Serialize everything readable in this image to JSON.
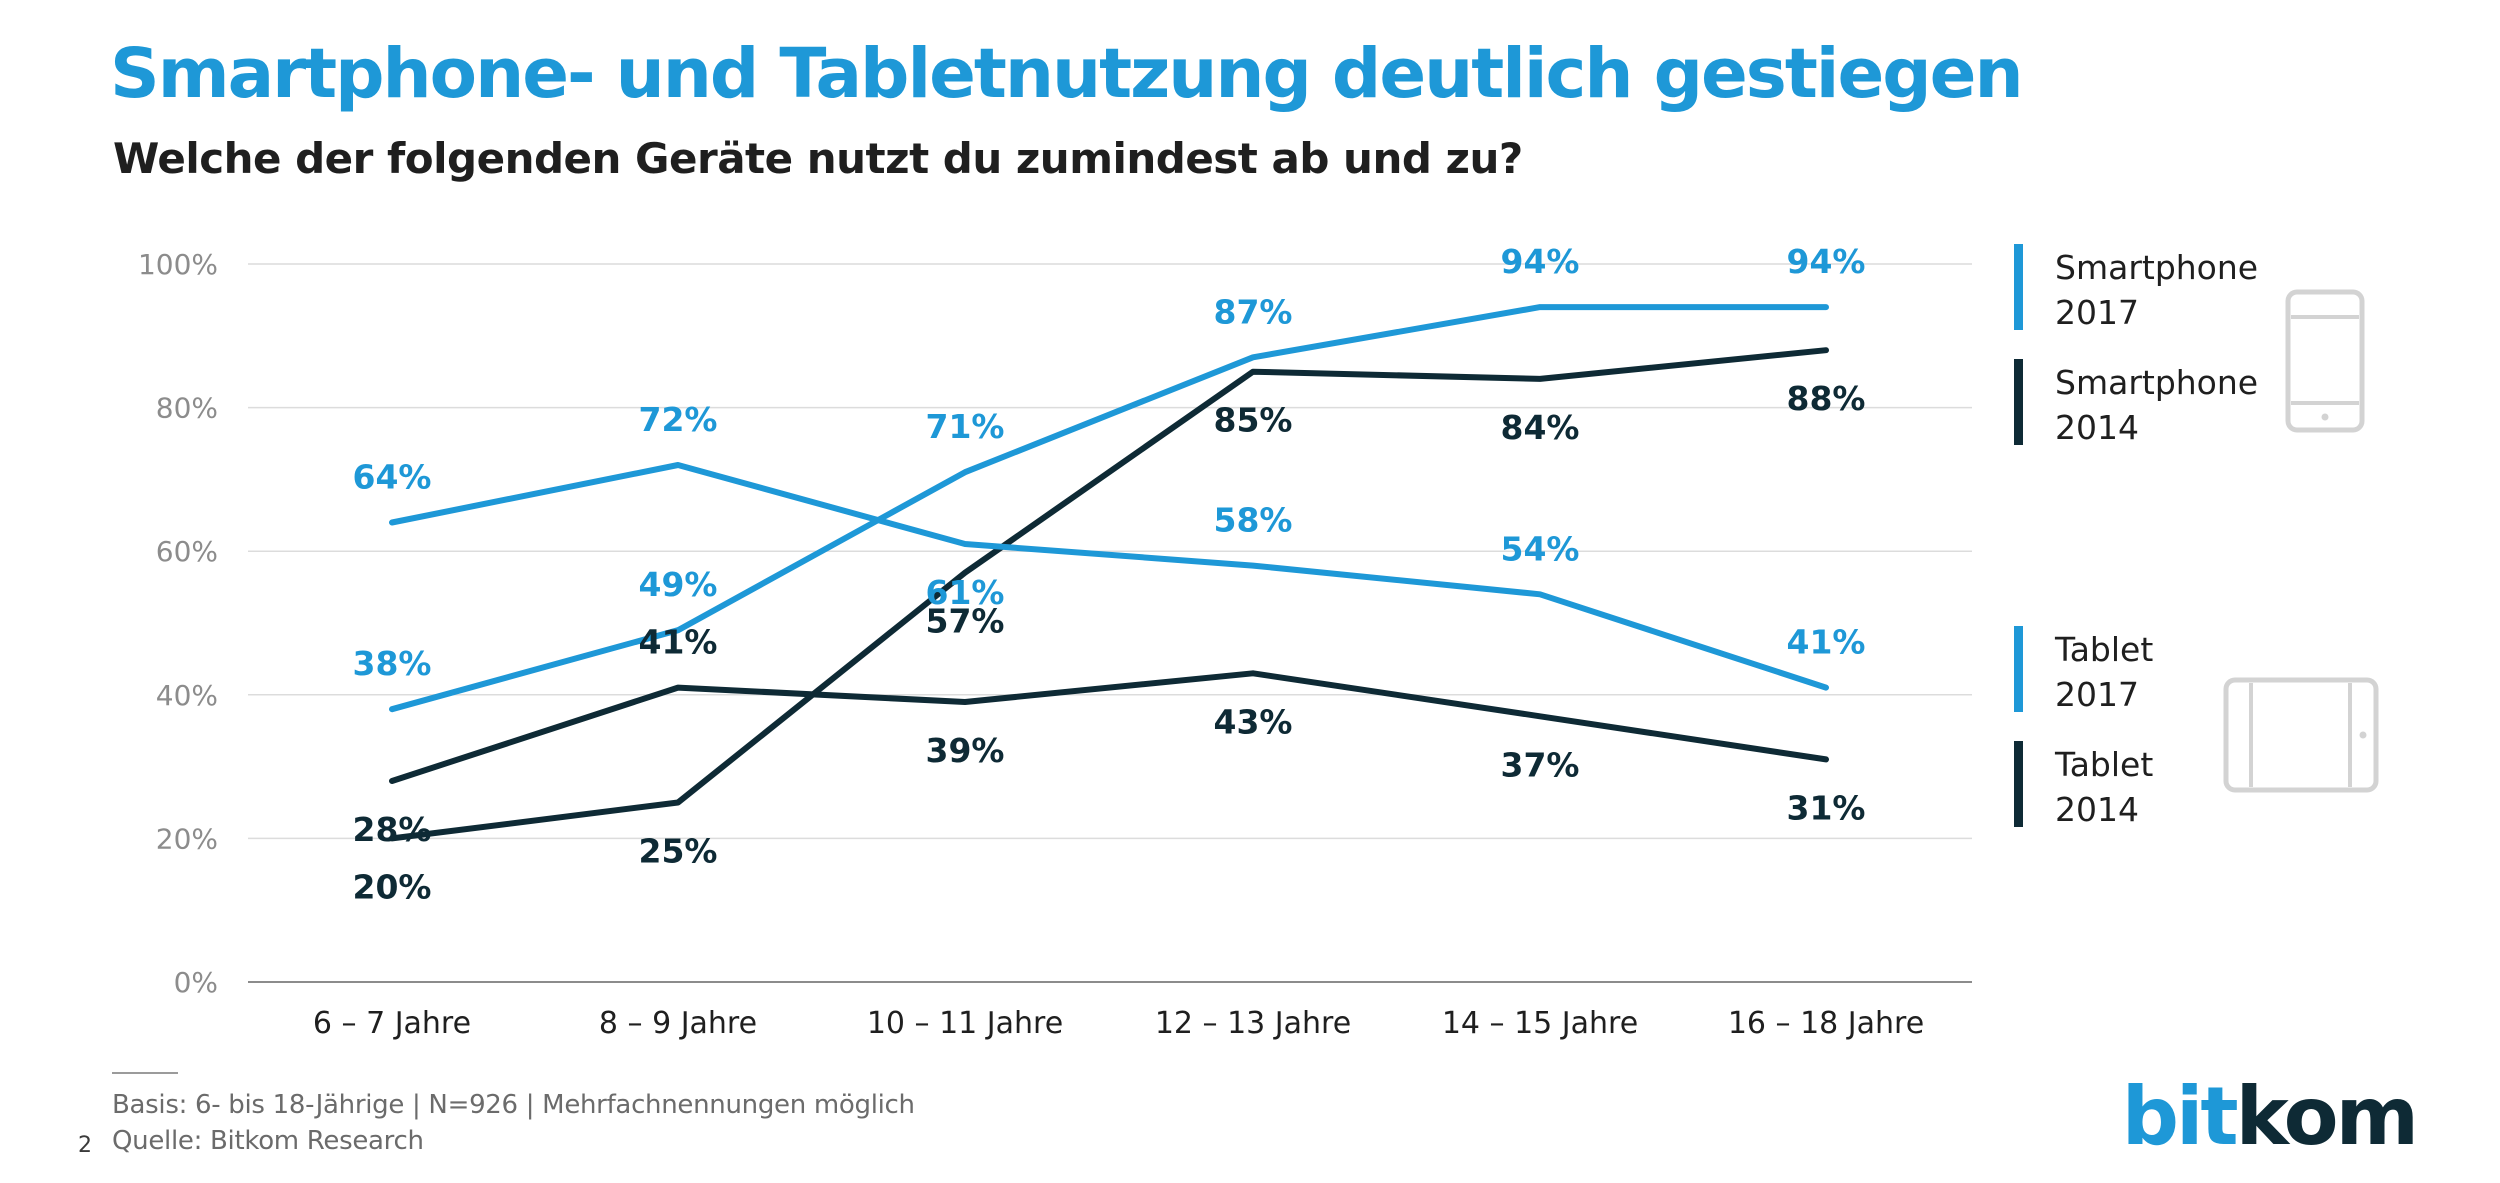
{
  "title": "Smartphone- und Tabletnutzung deutlich gestiegen",
  "subtitle": "Welche der folgenden Geräte nutzt du zumindest ab und zu?",
  "chart_data": {
    "type": "line",
    "categories": [
      "6 – 7 Jahre",
      "8 – 9 Jahre",
      "10 – 11 Jahre",
      "12 – 13 Jahre",
      "14 – 15 Jahre",
      "16 – 18 Jahre"
    ],
    "ylim": [
      0,
      100
    ],
    "yticks": [
      0,
      20,
      40,
      60,
      80,
      100
    ],
    "ytick_labels": [
      "0%",
      "20%",
      "40%",
      "60%",
      "80%",
      "100%"
    ],
    "grid": true,
    "legend_position": "right",
    "series": [
      {
        "name": "Smartphone 2017",
        "legend_lines": [
          "Smartphone",
          "2017"
        ],
        "color": "#1e98d7",
        "values": [
          38,
          49,
          71,
          87,
          94,
          94
        ],
        "data_labels": [
          "38%",
          "49%",
          "71%",
          "87%",
          "94%",
          "94%"
        ]
      },
      {
        "name": "Smartphone 2014",
        "legend_lines": [
          "Smartphone",
          "2014"
        ],
        "color": "#0e2a35",
        "values": [
          20,
          25,
          57,
          85,
          84,
          88
        ],
        "data_labels": [
          "20%",
          "25%",
          "57%",
          "85%",
          "84%",
          "88%"
        ]
      },
      {
        "name": "Tablet 2017",
        "legend_lines": [
          "Tablet",
          "2017"
        ],
        "color": "#1e98d7",
        "values": [
          64,
          72,
          61,
          58,
          54,
          41
        ],
        "data_labels": [
          "64%",
          "72%",
          "61%",
          "58%",
          "54%",
          "41%"
        ]
      },
      {
        "name": "Tablet 2014",
        "legend_lines": [
          "Tablet",
          "2014"
        ],
        "color": "#0e2a35",
        "values": [
          28,
          41,
          39,
          43,
          37,
          31
        ],
        "data_labels": [
          "28%",
          "41%",
          "39%",
          "43%",
          "37%",
          "31%"
        ]
      }
    ]
  },
  "icons": {
    "smartphone": "smartphone-icon",
    "tablet": "tablet-icon"
  },
  "colors": {
    "accent": "#1e98d7",
    "dark": "#0e2a35",
    "grid": "#dcdcdc",
    "axis_text": "#8c8c8c",
    "icon": "#d3d3d3"
  },
  "footer": {
    "basis": "Basis: 6- bis 18-Jährige | N=926 | Mehrfachnennungen möglich",
    "source": "Quelle: Bitkom Research",
    "page_number": "2"
  },
  "logo": {
    "part1": "bit",
    "part2": "kom"
  }
}
